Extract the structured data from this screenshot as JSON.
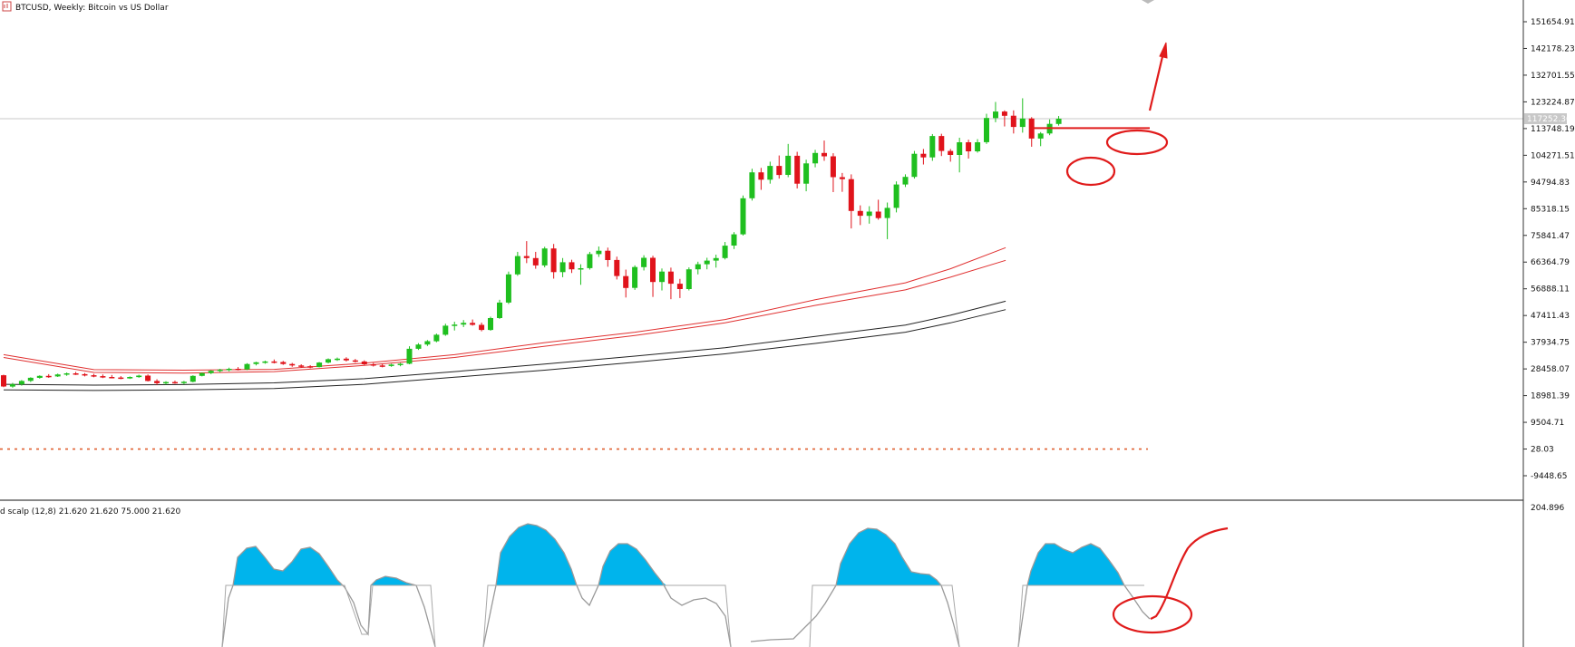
{
  "header": {
    "symbol_title": "BTCUSD, Weekly:  Bitcoin vs US Dollar",
    "indicator_title": "d scalp (12,8) 21.620 21.620 75.000 21.620"
  },
  "price_axis": {
    "ticks": [
      "151654.91",
      "142178.23",
      "132701.55",
      "123224.87",
      "113748.19",
      "104271.51",
      "94794.83",
      "85318.15",
      "75841.47",
      "66364.79",
      "56888.11",
      "47411.43",
      "37934.75",
      "28458.07",
      "18981.39",
      "9504.71",
      "28.03",
      "-9448.65"
    ],
    "current_price_label": "117252.36"
  },
  "indicator_axis": {
    "top_label": "204.896"
  },
  "colors": {
    "bull": "#1fbf1f",
    "bear": "#e0131b",
    "ma_red": "#e03030",
    "ma_black": "#222222",
    "fill_blue": "#00b4ec",
    "osc_line": "#9a9a9a",
    "annotation": "#e01b1b",
    "support_dotted": "#e06030"
  },
  "chart_data": {
    "type": "candlestick",
    "timeframe": "Weekly",
    "symbol": "BTCUSD",
    "ylim": [
      -9448.65,
      151654.91
    ],
    "current_price": 117252.36,
    "dotted_level": 28.03,
    "resistance_level": 113900,
    "candles": [
      [
        26200,
        26400,
        22000,
        22200
      ],
      [
        22200,
        23500,
        21800,
        23000
      ],
      [
        23000,
        24500,
        22500,
        24200
      ],
      [
        24200,
        25500,
        23800,
        25300
      ],
      [
        25300,
        26200,
        25000,
        26000
      ],
      [
        26000,
        26600,
        25300,
        25800
      ],
      [
        25800,
        26800,
        25600,
        26500
      ],
      [
        26500,
        27200,
        26000,
        26900
      ],
      [
        26900,
        27400,
        26300,
        26600
      ],
      [
        26600,
        27000,
        25800,
        26200
      ],
      [
        26200,
        26700,
        25500,
        25900
      ],
      [
        25900,
        26500,
        25200,
        25600
      ],
      [
        25600,
        26300,
        25100,
        25400
      ],
      [
        25400,
        25900,
        24800,
        25100
      ],
      [
        25100,
        25800,
        24900,
        25600
      ],
      [
        25600,
        26400,
        25300,
        26100
      ],
      [
        26100,
        26500,
        24000,
        24200
      ],
      [
        24200,
        24800,
        22800,
        23400
      ],
      [
        23400,
        24100,
        22900,
        23800
      ],
      [
        23800,
        24300,
        23200,
        23600
      ],
      [
        23600,
        24200,
        23000,
        23900
      ],
      [
        23900,
        26200,
        23700,
        26000
      ],
      [
        26000,
        27200,
        25800,
        27000
      ],
      [
        27000,
        28000,
        26600,
        27800
      ],
      [
        27800,
        28500,
        27200,
        28200
      ],
      [
        28200,
        28900,
        27600,
        28500
      ],
      [
        28500,
        29100,
        27900,
        28300
      ],
      [
        28300,
        30500,
        28000,
        30200
      ],
      [
        30200,
        31000,
        29700,
        30800
      ],
      [
        30800,
        31400,
        30300,
        31100
      ],
      [
        31100,
        31800,
        30400,
        30900
      ],
      [
        30900,
        31300,
        29900,
        30200
      ],
      [
        30200,
        30600,
        29200,
        29700
      ],
      [
        29700,
        30100,
        28900,
        29400
      ],
      [
        29400,
        29800,
        28700,
        29100
      ],
      [
        29100,
        30900,
        29000,
        30700
      ],
      [
        30700,
        32200,
        30400,
        31900
      ],
      [
        31900,
        32500,
        31300,
        32100
      ],
      [
        32100,
        32600,
        31100,
        31500
      ],
      [
        31500,
        32000,
        30700,
        31100
      ],
      [
        31100,
        31500,
        29800,
        30100
      ],
      [
        30100,
        30600,
        29300,
        29700
      ],
      [
        29700,
        30200,
        29000,
        29500
      ],
      [
        29500,
        30300,
        29200,
        30000
      ],
      [
        30000,
        30600,
        29400,
        30300
      ],
      [
        30300,
        36500,
        30100,
        35600
      ],
      [
        35600,
        37600,
        35200,
        37100
      ],
      [
        37100,
        38700,
        36600,
        38300
      ],
      [
        38300,
        41000,
        37900,
        40600
      ],
      [
        40600,
        44500,
        40200,
        43800
      ],
      [
        43800,
        45200,
        42100,
        44200
      ],
      [
        44200,
        45800,
        43300,
        44800
      ],
      [
        44800,
        46000,
        43800,
        44100
      ],
      [
        44100,
        44900,
        41800,
        42300
      ],
      [
        42300,
        47000,
        42000,
        46500
      ],
      [
        46500,
        53000,
        46200,
        52000
      ],
      [
        52000,
        63000,
        51500,
        62000
      ],
      [
        62000,
        70000,
        61500,
        68500
      ],
      [
        68500,
        73800,
        66000,
        67800
      ],
      [
        67800,
        70000,
        64000,
        65200
      ],
      [
        65200,
        71800,
        64500,
        71200
      ],
      [
        71200,
        72800,
        60500,
        62800
      ],
      [
        62800,
        67800,
        61000,
        66300
      ],
      [
        66300,
        67200,
        62500,
        63800
      ],
      [
        63800,
        65600,
        58300,
        64200
      ],
      [
        64200,
        70000,
        63700,
        69200
      ],
      [
        69200,
        71900,
        68200,
        70400
      ],
      [
        70400,
        71500,
        64700,
        67100
      ],
      [
        67100,
        68300,
        60200,
        61400
      ],
      [
        61400,
        63700,
        53800,
        57200
      ],
      [
        57200,
        65200,
        56500,
        64600
      ],
      [
        64600,
        68800,
        63400,
        67900
      ],
      [
        67900,
        68600,
        54000,
        59300
      ],
      [
        59300,
        64100,
        56300,
        63000
      ],
      [
        63000,
        64400,
        53200,
        58700
      ],
      [
        58700,
        60400,
        53600,
        56800
      ],
      [
        56800,
        64500,
        56300,
        63800
      ],
      [
        63800,
        66500,
        62000,
        65600
      ],
      [
        65600,
        67900,
        63800,
        66900
      ],
      [
        66900,
        69000,
        64400,
        67800
      ],
      [
        67800,
        73500,
        67300,
        72200
      ],
      [
        72200,
        77000,
        71000,
        76200
      ],
      [
        76200,
        90000,
        75800,
        89000
      ],
      [
        89000,
        99500,
        88200,
        98200
      ],
      [
        98200,
        99800,
        92000,
        95600
      ],
      [
        95600,
        102000,
        94200,
        100500
      ],
      [
        100500,
        104200,
        96000,
        97300
      ],
      [
        97300,
        108300,
        96500,
        104100
      ],
      [
        104100,
        105500,
        92500,
        94200
      ],
      [
        94200,
        102700,
        91500,
        101400
      ],
      [
        101400,
        106200,
        100000,
        105100
      ],
      [
        105100,
        109500,
        102300,
        103900
      ],
      [
        103900,
        105000,
        91200,
        96500
      ],
      [
        96500,
        98000,
        91300,
        95800
      ],
      [
        95800,
        97500,
        78300,
        84500
      ],
      [
        84500,
        86500,
        79500,
        82800
      ],
      [
        82800,
        86200,
        80000,
        84300
      ],
      [
        84300,
        88500,
        81400,
        82000
      ],
      [
        82000,
        87500,
        74500,
        85600
      ],
      [
        85600,
        95000,
        84000,
        93900
      ],
      [
        93900,
        97500,
        93000,
        96600
      ],
      [
        96600,
        105800,
        96000,
        104800
      ],
      [
        104800,
        106500,
        101000,
        103500
      ],
      [
        103500,
        111800,
        102300,
        111100
      ],
      [
        111100,
        111900,
        104000,
        105800
      ],
      [
        105800,
        106500,
        102000,
        104400
      ],
      [
        104400,
        110500,
        98200,
        108900
      ],
      [
        108900,
        109800,
        103100,
        105700
      ],
      [
        105700,
        110000,
        105200,
        108900
      ],
      [
        108900,
        119000,
        108300,
        117500
      ],
      [
        117500,
        123200,
        116000,
        119800
      ],
      [
        119800,
        120200,
        114500,
        118300
      ],
      [
        118300,
        120200,
        112000,
        114300
      ],
      [
        114300,
        124500,
        112300,
        117300
      ],
      [
        117300,
        117800,
        107300,
        110200
      ],
      [
        110200,
        112500,
        107500,
        112000
      ],
      [
        112000,
        117000,
        111400,
        115400
      ],
      [
        115400,
        118200,
        114800,
        117252.36
      ]
    ],
    "moving_averages": [
      {
        "color": "red",
        "points": [
          [
            0,
            33500
          ],
          [
            80,
            28200
          ],
          [
            160,
            28000
          ],
          [
            240,
            28300
          ],
          [
            320,
            30500
          ],
          [
            400,
            33500
          ],
          [
            480,
            37800
          ],
          [
            560,
            41500
          ],
          [
            640,
            46000
          ],
          [
            720,
            53000
          ],
          [
            800,
            59000
          ],
          [
            840,
            64000
          ],
          [
            889,
            71500
          ]
        ]
      },
      {
        "color": "red",
        "points": [
          [
            0,
            32500
          ],
          [
            80,
            27200
          ],
          [
            160,
            27000
          ],
          [
            240,
            27500
          ],
          [
            320,
            29700
          ],
          [
            400,
            32500
          ],
          [
            480,
            36500
          ],
          [
            560,
            40300
          ],
          [
            640,
            44800
          ],
          [
            720,
            51000
          ],
          [
            800,
            56500
          ],
          [
            840,
            61000
          ],
          [
            889,
            67000
          ]
        ]
      },
      {
        "color": "black",
        "points": [
          [
            0,
            23000
          ],
          [
            80,
            22700
          ],
          [
            160,
            22900
          ],
          [
            240,
            23500
          ],
          [
            320,
            25000
          ],
          [
            400,
            27500
          ],
          [
            480,
            30200
          ],
          [
            560,
            33000
          ],
          [
            640,
            36000
          ],
          [
            720,
            40000
          ],
          [
            800,
            44000
          ],
          [
            840,
            47500
          ],
          [
            889,
            52500
          ]
        ]
      },
      {
        "color": "black",
        "points": [
          [
            0,
            21000
          ],
          [
            80,
            20800
          ],
          [
            160,
            21000
          ],
          [
            240,
            21500
          ],
          [
            320,
            23000
          ],
          [
            400,
            25500
          ],
          [
            480,
            28000
          ],
          [
            560,
            30800
          ],
          [
            640,
            33800
          ],
          [
            720,
            37500
          ],
          [
            800,
            41500
          ],
          [
            840,
            44800
          ],
          [
            889,
            49500
          ]
        ]
      }
    ],
    "oscillator": {
      "top_value": 204.896,
      "parameters": "(12,8)",
      "levels": [
        21.62,
        21.62,
        75.0,
        21.62
      ]
    }
  }
}
